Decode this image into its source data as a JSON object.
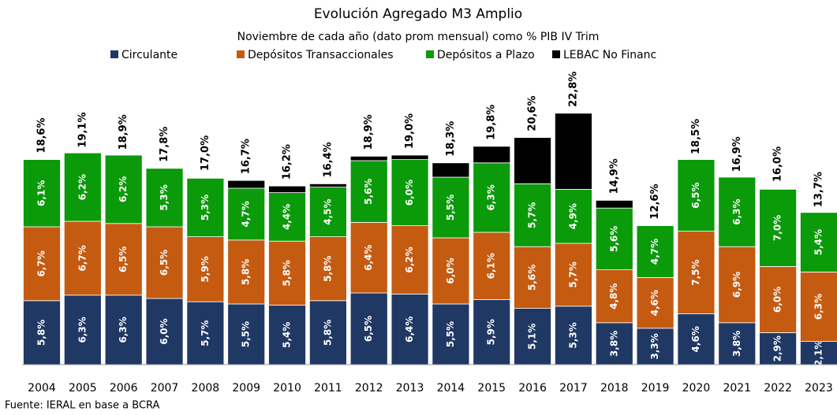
{
  "chart_data": {
    "type": "stacked_bar",
    "title": "Evolución Agregado M3 Amplio",
    "subtitle": "Noviembre de cada año (dato prom mensual) como % PIB IV Trim",
    "source": "Fuente: IERAL en base a BCRA",
    "categories": [
      "2004",
      "2005",
      "2006",
      "2007",
      "2008",
      "2009",
      "2010",
      "2011",
      "2012",
      "2013",
      "2014",
      "2015",
      "2016",
      "2017",
      "2018",
      "2019",
      "2020",
      "2021",
      "2022",
      "2023"
    ],
    "series": [
      {
        "name": "Circulante",
        "color": "#203864",
        "values": [
          5.8,
          6.3,
          6.3,
          6.0,
          5.7,
          5.5,
          5.4,
          5.8,
          6.5,
          6.4,
          5.5,
          5.9,
          5.1,
          5.3,
          3.8,
          3.3,
          4.6,
          3.8,
          2.9,
          2.1
        ],
        "value_labels": [
          "5,8%",
          "6,3%",
          "6,3%",
          "6,0%",
          "5,7%",
          "5,5%",
          "5,4%",
          "5,8%",
          "6,5%",
          "6,4%",
          "5,5%",
          "5,9%",
          "5,1%",
          "5,3%",
          "3,8%",
          "3,3%",
          "4,6%",
          "3,8%",
          "2,9%",
          "2,1%"
        ]
      },
      {
        "name": "Depósitos Transaccionales",
        "color": "#c55a11",
        "values": [
          6.7,
          6.7,
          6.5,
          6.5,
          5.9,
          5.8,
          5.8,
          5.8,
          6.4,
          6.2,
          6.0,
          6.1,
          5.6,
          5.7,
          4.8,
          4.6,
          7.5,
          6.9,
          6.0,
          6.3
        ],
        "value_labels": [
          "6,7%",
          "6,7%",
          "6,5%",
          "6,5%",
          "5,9%",
          "5,8%",
          "5,8%",
          "5,8%",
          "6,4%",
          "6,2%",
          "6,0%",
          "6,1%",
          "5,6%",
          "5,7%",
          "4,8%",
          "4,6%",
          "7,5%",
          "6,9%",
          "6,0%",
          "6,3%"
        ]
      },
      {
        "name": "Depósitos a Plazo",
        "color": "#0a9a0a",
        "values": [
          6.1,
          6.2,
          6.2,
          5.3,
          5.3,
          4.7,
          4.4,
          4.5,
          5.6,
          6.0,
          5.5,
          6.3,
          5.7,
          4.9,
          5.6,
          4.7,
          6.5,
          6.3,
          7.0,
          5.4
        ],
        "value_labels": [
          "6,1%",
          "6,2%",
          "6,2%",
          "5,3%",
          "5,3%",
          "4,7%",
          "4,4%",
          "4,5%",
          "5,6%",
          "6,0%",
          "5,5%",
          "6,3%",
          "5,7%",
          "4,9%",
          "5,6%",
          "4,7%",
          "6,5%",
          "6,3%",
          "7,0%",
          "5,4%"
        ]
      },
      {
        "name": "LEBAC No Financ",
        "color": "#000000",
        "values": [
          0,
          0,
          0,
          0,
          0,
          0.7,
          0.6,
          0.3,
          0.4,
          0.4,
          1.3,
          1.5,
          4.2,
          6.9,
          0.7,
          0,
          0,
          0,
          0,
          0
        ]
      }
    ],
    "totals": [
      18.6,
      19.1,
      18.9,
      17.8,
      17.0,
      16.7,
      16.2,
      16.4,
      18.9,
      19.0,
      18.3,
      19.8,
      20.6,
      22.8,
      14.9,
      12.6,
      18.5,
      16.9,
      16.0,
      13.7
    ],
    "total_labels": [
      "18,6%",
      "19,1%",
      "18,9%",
      "17,8%",
      "17,0%",
      "16,7%",
      "16,2%",
      "16,4%",
      "18,9%",
      "19,0%",
      "18,3%",
      "19,8%",
      "20,6%",
      "22,8%",
      "14,9%",
      "12,6%",
      "18,5%",
      "16,9%",
      "16,0%",
      "13,7%"
    ]
  }
}
